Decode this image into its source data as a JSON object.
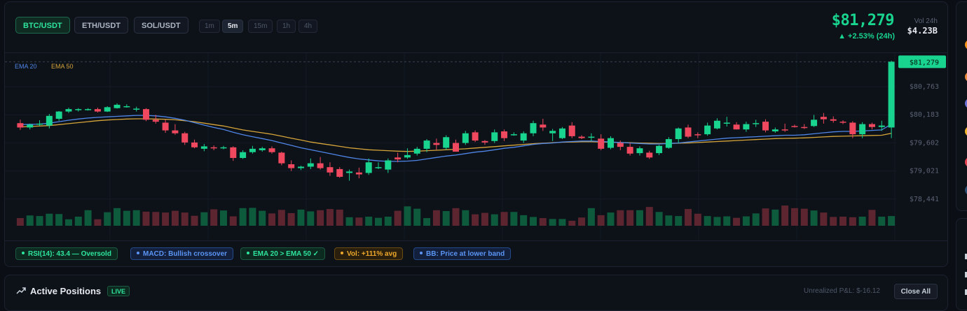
{
  "pairs": [
    {
      "label": "BTC/USDT",
      "active": true
    },
    {
      "label": "ETH/USDT",
      "active": false
    },
    {
      "label": "SOL/USDT",
      "active": false
    }
  ],
  "timeframes": [
    {
      "label": "1m",
      "active": false
    },
    {
      "label": "5m",
      "active": true
    },
    {
      "label": "15m",
      "active": false
    },
    {
      "label": "1h",
      "active": false
    },
    {
      "label": "4h",
      "active": false
    }
  ],
  "ticker": {
    "price": "$81,279",
    "change": "▲ +2.53% (24h)",
    "vol_label": "Vol 24h",
    "vol_value": "$4.23B"
  },
  "legend": {
    "ema20": "EMA 20",
    "ema50": "EMA 50"
  },
  "colors": {
    "up": "#19d48f",
    "down": "#f0485e",
    "ema20": "#4f86e8",
    "ema50": "#d6a53a"
  },
  "price_axis": {
    "current_label": "$81,279",
    "ticks": [
      "$80,763",
      "$80,183",
      "$79,602",
      "$79,021",
      "$78,441"
    ]
  },
  "chart_data": {
    "type": "candlestick",
    "y_ticks": [
      80763,
      80183,
      79602,
      79021,
      78441
    ],
    "ylim": [
      78250,
      81400
    ],
    "current_price": 81279,
    "candles": [
      {
        "o": 80010,
        "h": 80080,
        "l": 79870,
        "c": 79920
      },
      {
        "o": 79920,
        "h": 80000,
        "l": 79880,
        "c": 79980
      },
      {
        "o": 79980,
        "h": 80070,
        "l": 79950,
        "c": 80000
      },
      {
        "o": 79960,
        "h": 80200,
        "l": 79900,
        "c": 80160
      },
      {
        "o": 80100,
        "h": 80260,
        "l": 80060,
        "c": 80250
      },
      {
        "o": 80250,
        "h": 80330,
        "l": 80220,
        "c": 80300
      },
      {
        "o": 80280,
        "h": 80320,
        "l": 80250,
        "c": 80300
      },
      {
        "o": 80290,
        "h": 80320,
        "l": 80270,
        "c": 80300
      },
      {
        "o": 80300,
        "h": 80330,
        "l": 80230,
        "c": 80250
      },
      {
        "o": 80250,
        "h": 80360,
        "l": 80240,
        "c": 80340
      },
      {
        "o": 80320,
        "h": 80420,
        "l": 80310,
        "c": 80390
      },
      {
        "o": 80360,
        "h": 80400,
        "l": 80330,
        "c": 80360
      },
      {
        "o": 80300,
        "h": 80350,
        "l": 80250,
        "c": 80310
      },
      {
        "o": 80300,
        "h": 80320,
        "l": 80050,
        "c": 80080
      },
      {
        "o": 80080,
        "h": 80180,
        "l": 80000,
        "c": 80040
      },
      {
        "o": 80020,
        "h": 80080,
        "l": 79810,
        "c": 79860
      },
      {
        "o": 79860,
        "h": 79990,
        "l": 79770,
        "c": 79800
      },
      {
        "o": 79800,
        "h": 79830,
        "l": 79560,
        "c": 79610
      },
      {
        "o": 79610,
        "h": 79670,
        "l": 79490,
        "c": 79510
      },
      {
        "o": 79480,
        "h": 79580,
        "l": 79430,
        "c": 79530
      },
      {
        "o": 79510,
        "h": 79550,
        "l": 79450,
        "c": 79500
      },
      {
        "o": 79510,
        "h": 79540,
        "l": 79470,
        "c": 79510
      },
      {
        "o": 79510,
        "h": 79530,
        "l": 79230,
        "c": 79290
      },
      {
        "o": 79290,
        "h": 79450,
        "l": 79270,
        "c": 79410
      },
      {
        "o": 79410,
        "h": 79540,
        "l": 79380,
        "c": 79480
      },
      {
        "o": 79450,
        "h": 79520,
        "l": 79420,
        "c": 79490
      },
      {
        "o": 79490,
        "h": 79530,
        "l": 79380,
        "c": 79410
      },
      {
        "o": 79400,
        "h": 79420,
        "l": 79140,
        "c": 79180
      },
      {
        "o": 79160,
        "h": 79240,
        "l": 79020,
        "c": 79080
      },
      {
        "o": 79080,
        "h": 79130,
        "l": 79040,
        "c": 79110
      },
      {
        "o": 79110,
        "h": 79280,
        "l": 79060,
        "c": 79180
      },
      {
        "o": 79180,
        "h": 79310,
        "l": 79050,
        "c": 79080
      },
      {
        "o": 79100,
        "h": 79200,
        "l": 78920,
        "c": 78990
      },
      {
        "o": 79060,
        "h": 79100,
        "l": 78880,
        "c": 78900
      },
      {
        "o": 78980,
        "h": 79050,
        "l": 78820,
        "c": 79010
      },
      {
        "o": 78990,
        "h": 79090,
        "l": 78870,
        "c": 78950
      },
      {
        "o": 78980,
        "h": 79280,
        "l": 78940,
        "c": 79200
      },
      {
        "o": 79100,
        "h": 79200,
        "l": 79060,
        "c": 79100
      },
      {
        "o": 79050,
        "h": 79280,
        "l": 78980,
        "c": 79240
      },
      {
        "o": 79300,
        "h": 79400,
        "l": 79200,
        "c": 79260
      },
      {
        "o": 79300,
        "h": 79490,
        "l": 79270,
        "c": 79350
      },
      {
        "o": 79380,
        "h": 79520,
        "l": 79340,
        "c": 79480
      },
      {
        "o": 79480,
        "h": 79680,
        "l": 79410,
        "c": 79650
      },
      {
        "o": 79600,
        "h": 79690,
        "l": 79460,
        "c": 79560
      },
      {
        "o": 79500,
        "h": 79760,
        "l": 79460,
        "c": 79720
      },
      {
        "o": 79600,
        "h": 79670,
        "l": 79440,
        "c": 79420
      },
      {
        "o": 79600,
        "h": 79850,
        "l": 79560,
        "c": 79800
      },
      {
        "o": 79820,
        "h": 79860,
        "l": 79620,
        "c": 79650
      },
      {
        "o": 79640,
        "h": 79660,
        "l": 79560,
        "c": 79610
      },
      {
        "o": 79640,
        "h": 79880,
        "l": 79600,
        "c": 79820
      },
      {
        "o": 79840,
        "h": 79880,
        "l": 79640,
        "c": 79700
      },
      {
        "o": 79770,
        "h": 79820,
        "l": 79750,
        "c": 79780
      },
      {
        "o": 79650,
        "h": 79840,
        "l": 79600,
        "c": 79800
      },
      {
        "o": 79800,
        "h": 80060,
        "l": 79740,
        "c": 80010
      },
      {
        "o": 79980,
        "h": 80100,
        "l": 79850,
        "c": 79920
      },
      {
        "o": 79800,
        "h": 79890,
        "l": 79640,
        "c": 79850
      },
      {
        "o": 79700,
        "h": 79930,
        "l": 79680,
        "c": 79900
      },
      {
        "o": 79960,
        "h": 80030,
        "l": 79700,
        "c": 79740
      },
      {
        "o": 79730,
        "h": 79760,
        "l": 79680,
        "c": 79700
      },
      {
        "o": 79730,
        "h": 79800,
        "l": 79640,
        "c": 79730
      },
      {
        "o": 79690,
        "h": 79780,
        "l": 79450,
        "c": 79480
      },
      {
        "o": 79500,
        "h": 79740,
        "l": 79470,
        "c": 79700
      },
      {
        "o": 79600,
        "h": 79650,
        "l": 79450,
        "c": 79520
      },
      {
        "o": 79520,
        "h": 79600,
        "l": 79340,
        "c": 79380
      },
      {
        "o": 79390,
        "h": 79530,
        "l": 79340,
        "c": 79490
      },
      {
        "o": 79400,
        "h": 79440,
        "l": 79270,
        "c": 79300
      },
      {
        "o": 79390,
        "h": 79560,
        "l": 79350,
        "c": 79540
      },
      {
        "o": 79500,
        "h": 79720,
        "l": 79480,
        "c": 79680
      },
      {
        "o": 79680,
        "h": 79920,
        "l": 79600,
        "c": 79900
      },
      {
        "o": 79920,
        "h": 79980,
        "l": 79700,
        "c": 79730
      },
      {
        "o": 79780,
        "h": 79820,
        "l": 79700,
        "c": 79760
      },
      {
        "o": 79780,
        "h": 80020,
        "l": 79750,
        "c": 79960
      },
      {
        "o": 79900,
        "h": 80110,
        "l": 79880,
        "c": 80060
      },
      {
        "o": 80010,
        "h": 80140,
        "l": 79940,
        "c": 80020
      },
      {
        "o": 79980,
        "h": 80030,
        "l": 79880,
        "c": 79880
      },
      {
        "o": 79880,
        "h": 80040,
        "l": 79830,
        "c": 79990
      },
      {
        "o": 79990,
        "h": 80080,
        "l": 79930,
        "c": 80010
      },
      {
        "o": 80040,
        "h": 80090,
        "l": 79820,
        "c": 79860
      },
      {
        "o": 79840,
        "h": 79920,
        "l": 79810,
        "c": 79880
      },
      {
        "o": 79880,
        "h": 80000,
        "l": 79830,
        "c": 79870
      },
      {
        "o": 79950,
        "h": 79980,
        "l": 79920,
        "c": 79940
      },
      {
        "o": 79930,
        "h": 79990,
        "l": 79890,
        "c": 79920
      },
      {
        "o": 79950,
        "h": 80180,
        "l": 79930,
        "c": 80080
      },
      {
        "o": 80140,
        "h": 80220,
        "l": 80000,
        "c": 80090
      },
      {
        "o": 80090,
        "h": 80150,
        "l": 80020,
        "c": 80060
      },
      {
        "o": 80040,
        "h": 80070,
        "l": 79990,
        "c": 80020
      },
      {
        "o": 80020,
        "h": 80050,
        "l": 79700,
        "c": 79780
      },
      {
        "o": 79780,
        "h": 80030,
        "l": 79700,
        "c": 79990
      },
      {
        "o": 79990,
        "h": 80020,
        "l": 79880,
        "c": 79930
      },
      {
        "o": 79930,
        "h": 80060,
        "l": 79850,
        "c": 79960
      },
      {
        "o": 79920,
        "h": 81300,
        "l": 79700,
        "c": 81279
      }
    ],
    "ema20": [
      79980,
      79985,
      79990,
      80010,
      80040,
      80070,
      80095,
      80115,
      80130,
      80140,
      80150,
      80160,
      80170,
      80170,
      80160,
      80140,
      80110,
      80070,
      80020,
      79970,
      79920,
      79880,
      79820,
      79770,
      79730,
      79690,
      79650,
      79600,
      79550,
      79500,
      79460,
      79420,
      79380,
      79340,
      79300,
      79270,
      79250,
      79230,
      79220,
      79220,
      79225,
      79240,
      79270,
      79300,
      79330,
      79350,
      79380,
      79410,
      79430,
      79460,
      79490,
      79510,
      79540,
      79570,
      79590,
      79600,
      79620,
      79630,
      79640,
      79640,
      79630,
      79620,
      79610,
      79600,
      79590,
      79580,
      79580,
      79590,
      79600,
      79620,
      79640,
      79660,
      79680,
      79700,
      79710,
      79720,
      79730,
      79740,
      79750,
      79760,
      79760,
      79770,
      79790,
      79810,
      79830,
      79840,
      79840,
      79850,
      79860,
      79870,
      79990
    ],
    "ema50": [
      79930,
      79940,
      79950,
      79960,
      79980,
      80000,
      80020,
      80040,
      80060,
      80075,
      80085,
      80095,
      80100,
      80100,
      80095,
      80090,
      80080,
      80060,
      80040,
      80010,
      79980,
      79950,
      79910,
      79870,
      79840,
      79810,
      79780,
      79740,
      79700,
      79660,
      79620,
      79590,
      79560,
      79530,
      79500,
      79480,
      79460,
      79450,
      79440,
      79430,
      79425,
      79430,
      79440,
      79450,
      79460,
      79470,
      79480,
      79495,
      79510,
      79525,
      79540,
      79555,
      79570,
      79585,
      79595,
      79605,
      79615,
      79620,
      79625,
      79625,
      79620,
      79615,
      79610,
      79605,
      79600,
      79595,
      79590,
      79590,
      79595,
      79600,
      79610,
      79620,
      79630,
      79640,
      79650,
      79660,
      79670,
      79680,
      79690,
      79695,
      79700,
      79705,
      79715,
      79725,
      79735,
      79740,
      79745,
      79750,
      79755,
      79760,
      79800
    ],
    "volume": [
      0.26,
      0.35,
      0.33,
      0.41,
      0.4,
      0.22,
      0.31,
      0.53,
      0.22,
      0.46,
      0.6,
      0.51,
      0.53,
      0.48,
      0.47,
      0.45,
      0.51,
      0.45,
      0.34,
      0.46,
      0.56,
      0.52,
      0.32,
      0.6,
      0.61,
      0.51,
      0.42,
      0.54,
      0.43,
      0.55,
      0.49,
      0.53,
      0.57,
      0.55,
      0.29,
      0.28,
      0.31,
      0.27,
      0.31,
      0.51,
      0.66,
      0.58,
      0.26,
      0.53,
      0.5,
      0.6,
      0.53,
      0.39,
      0.44,
      0.39,
      0.47,
      0.47,
      0.36,
      0.3,
      0.26,
      0.23,
      0.23,
      0.17,
      0.28,
      0.6,
      0.36,
      0.45,
      0.53,
      0.53,
      0.53,
      0.64,
      0.47,
      0.35,
      0.33,
      0.57,
      0.41,
      0.33,
      0.3,
      0.32,
      0.27,
      0.32,
      0.42,
      0.59,
      0.55,
      0.69,
      0.6,
      0.58,
      0.52,
      0.45,
      0.3,
      0.31,
      0.29,
      0.31,
      0.54,
      0.31,
      0.33
    ]
  },
  "indicators": [
    {
      "text": "RSI(14):  43.4  — Oversold",
      "color": "green"
    },
    {
      "text": "MACD: Bullish crossover",
      "color": "blue"
    },
    {
      "text": "EMA 20 > EMA 50 ✓",
      "color": "green"
    },
    {
      "text": "Vol:  +111%  avg",
      "color": "orange"
    },
    {
      "text": "BB: Price at lower band",
      "color": "blue"
    }
  ],
  "positions": {
    "icon": "trending-up-icon",
    "title": "Active Positions",
    "badge": "LIVE",
    "unrealized": "Unrealized P&L: $-16.12",
    "close_all": "Close All"
  }
}
